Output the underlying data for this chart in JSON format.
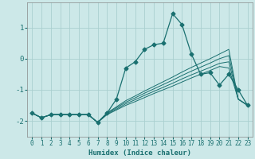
{
  "title": "",
  "xlabel": "Humidex (Indice chaleur)",
  "ylabel": "",
  "xlim": [
    -0.5,
    23.5
  ],
  "ylim": [
    -2.5,
    1.8
  ],
  "xticks": [
    0,
    1,
    2,
    3,
    4,
    5,
    6,
    7,
    8,
    9,
    10,
    11,
    12,
    13,
    14,
    15,
    16,
    17,
    18,
    19,
    20,
    21,
    22,
    23
  ],
  "yticks": [
    -2,
    -1,
    0,
    1
  ],
  "bg_color": "#cce8e8",
  "grid_color": "#aacfcf",
  "line_color": "#1a7070",
  "lines": [
    {
      "x": [
        0,
        1,
        2,
        3,
        4,
        5,
        6,
        7,
        8,
        9,
        10,
        11,
        12,
        13,
        14,
        15,
        16,
        17,
        18,
        19,
        20,
        21,
        22,
        23
      ],
      "y": [
        -1.75,
        -1.9,
        -1.8,
        -1.8,
        -1.8,
        -1.8,
        -1.8,
        -2.05,
        -1.75,
        -1.3,
        -0.3,
        -0.1,
        0.3,
        0.45,
        0.5,
        1.45,
        1.1,
        0.15,
        -0.5,
        -0.45,
        -0.85,
        -0.5,
        -1.0,
        -1.5
      ],
      "marker": "D",
      "markersize": 2.5
    },
    {
      "x": [
        0,
        1,
        2,
        3,
        4,
        5,
        6,
        7,
        8,
        9,
        10,
        11,
        12,
        13,
        14,
        15,
        16,
        17,
        18,
        19,
        20,
        21,
        22,
        23
      ],
      "y": [
        -1.75,
        -1.9,
        -1.8,
        -1.8,
        -1.8,
        -1.8,
        -1.8,
        -2.05,
        -1.8,
        -1.65,
        -1.5,
        -1.38,
        -1.25,
        -1.12,
        -1.0,
        -0.88,
        -0.75,
        -0.62,
        -0.5,
        -0.38,
        -0.25,
        -0.3,
        -1.3,
        -1.5
      ],
      "marker": null,
      "markersize": 0
    },
    {
      "x": [
        0,
        1,
        2,
        3,
        4,
        5,
        6,
        7,
        8,
        9,
        10,
        11,
        12,
        13,
        14,
        15,
        16,
        17,
        18,
        19,
        20,
        21,
        22,
        23
      ],
      "y": [
        -1.75,
        -1.9,
        -1.8,
        -1.8,
        -1.8,
        -1.8,
        -1.8,
        -2.05,
        -1.78,
        -1.62,
        -1.45,
        -1.32,
        -1.18,
        -1.05,
        -0.92,
        -0.79,
        -0.65,
        -0.52,
        -0.4,
        -0.28,
        -0.15,
        -0.1,
        -1.3,
        -1.5
      ],
      "marker": null,
      "markersize": 0
    },
    {
      "x": [
        0,
        1,
        2,
        3,
        4,
        5,
        6,
        7,
        8,
        9,
        10,
        11,
        12,
        13,
        14,
        15,
        16,
        17,
        18,
        19,
        20,
        21,
        22,
        23
      ],
      "y": [
        -1.75,
        -1.9,
        -1.8,
        -1.8,
        -1.8,
        -1.8,
        -1.8,
        -2.05,
        -1.76,
        -1.58,
        -1.4,
        -1.26,
        -1.11,
        -0.97,
        -0.83,
        -0.69,
        -0.54,
        -0.4,
        -0.27,
        -0.14,
        0.0,
        0.1,
        -1.3,
        -1.5
      ],
      "marker": null,
      "markersize": 0
    },
    {
      "x": [
        0,
        1,
        2,
        3,
        4,
        5,
        6,
        7,
        8,
        9,
        10,
        11,
        12,
        13,
        14,
        15,
        16,
        17,
        18,
        19,
        20,
        21,
        22,
        23
      ],
      "y": [
        -1.75,
        -1.9,
        -1.8,
        -1.8,
        -1.8,
        -1.8,
        -1.8,
        -2.05,
        -1.74,
        -1.55,
        -1.35,
        -1.2,
        -1.04,
        -0.89,
        -0.74,
        -0.59,
        -0.43,
        -0.28,
        -0.14,
        0.0,
        0.15,
        0.3,
        -1.3,
        -1.5
      ],
      "marker": null,
      "markersize": 0
    }
  ]
}
